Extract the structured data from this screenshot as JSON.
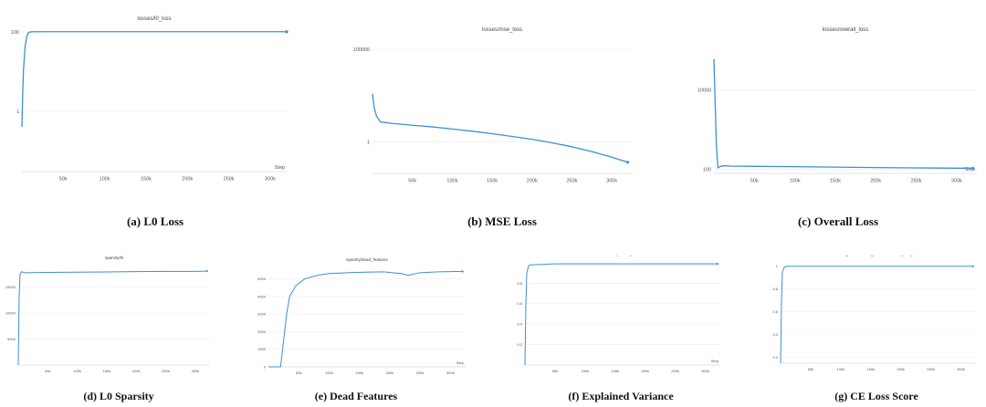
{
  "colors": {
    "line": "#3d8fd6",
    "band": "#bcd8f2",
    "grid": "#ececec",
    "axis": "#cccccc",
    "tick": "#555555",
    "title": "#444444"
  },
  "chart_data": [
    {
      "id": "l0_loss",
      "type": "line",
      "title": "losses/l0_loss",
      "xlabel": "Step",
      "caption": "(a) L0 Loss",
      "log_y": true,
      "x_ticks": [
        50000,
        100000,
        150000,
        200000,
        250000,
        300000
      ],
      "x_tick_labels": [
        "50k",
        "100k",
        "150k",
        "200k",
        "250k",
        "300k"
      ],
      "y_ticks": [
        1,
        100
      ],
      "y_tick_labels": [
        "1",
        "100"
      ],
      "xlim": [
        0,
        320000
      ],
      "ylim": [
        0.03,
        130
      ],
      "series": [
        {
          "x": [
            0,
            1000,
            2000,
            4000,
            6000,
            8000,
            10000,
            15000,
            50000,
            100000,
            150000,
            200000,
            250000,
            300000,
            320000
          ],
          "y": [
            0.4,
            3,
            12,
            45,
            80,
            96,
            100,
            101,
            101,
            101,
            101,
            101,
            101,
            101,
            101
          ]
        }
      ]
    },
    {
      "id": "mse_loss",
      "type": "line",
      "title": "losses/mse_loss",
      "xlabel": "",
      "caption": "(b) MSE Loss",
      "log_y": true,
      "x_ticks": [
        50000,
        100000,
        150000,
        200000,
        250000,
        300000
      ],
      "x_tick_labels": [
        "50k",
        "100k",
        "150k",
        "200k",
        "250k",
        "300k"
      ],
      "y_ticks": [
        1,
        100000
      ],
      "y_tick_labels": [
        "1",
        "100000"
      ],
      "xlim": [
        0,
        325000
      ],
      "ylim": [
        0.02,
        400000
      ],
      "series": [
        {
          "x": [
            0,
            2000,
            5000,
            10000,
            25000,
            50000,
            75000,
            100000,
            125000,
            150000,
            175000,
            200000,
            225000,
            250000,
            275000,
            300000,
            320000
          ],
          "y": [
            400,
            80,
            25,
            12,
            10,
            8,
            6.5,
            5,
            3.8,
            2.8,
            2,
            1.4,
            0.9,
            0.55,
            0.3,
            0.15,
            0.08
          ]
        }
      ]
    },
    {
      "id": "overall_loss",
      "type": "line",
      "title": "losses/overall_loss",
      "xlabel": "Step",
      "caption": "(c) Overall Loss",
      "log_y": true,
      "x_ticks": [
        50000,
        100000,
        150000,
        200000,
        250000,
        300000
      ],
      "x_tick_labels": [
        "50k",
        "100k",
        "150k",
        "200k",
        "250k",
        "300k"
      ],
      "y_ticks": [
        100,
        10000
      ],
      "y_tick_labels": [
        "100",
        "10000"
      ],
      "xlim": [
        0,
        325000
      ],
      "ylim": [
        80,
        200000
      ],
      "series": [
        {
          "x": [
            0,
            1500,
            3000,
            5000,
            8000,
            12000,
            20000,
            50000,
            100000,
            150000,
            200000,
            250000,
            300000,
            320000
          ],
          "y": [
            60000,
            5000,
            400,
            110,
            120,
            125,
            122,
            120,
            118,
            115,
            112,
            110,
            108,
            108
          ]
        }
      ]
    },
    {
      "id": "sparsity_l0",
      "type": "line",
      "title": "sparsity/l0",
      "xlabel": "",
      "caption": "(d) L0 Sparsity",
      "log_y": false,
      "x_ticks": [
        50000,
        100000,
        150000,
        200000,
        250000,
        300000
      ],
      "x_tick_labels": [
        "50k",
        "100k",
        "150k",
        "200k",
        "250k",
        "300k"
      ],
      "y_ticks": [
        5000,
        10000,
        15000
      ],
      "y_tick_labels": [
        "5000",
        "10000",
        "15000"
      ],
      "xlim": [
        0,
        325000
      ],
      "ylim": [
        0,
        19000
      ],
      "series": [
        {
          "x": [
            0,
            1500,
            3000,
            6000,
            10000,
            50000,
            100000,
            150000,
            200000,
            250000,
            300000,
            320000
          ],
          "y": [
            0,
            13000,
            17500,
            18000,
            17800,
            17850,
            17900,
            17950,
            18000,
            18050,
            18050,
            18100
          ]
        }
      ]
    },
    {
      "id": "dead_features",
      "type": "line",
      "title": "sparsity/dead_features",
      "xlabel": "Step",
      "caption": "(e) Dead Features",
      "log_y": false,
      "x_ticks": [
        50000,
        100000,
        150000,
        200000,
        250000,
        300000
      ],
      "x_tick_labels": [
        "50k",
        "100k",
        "150k",
        "200k",
        "250k",
        "300k"
      ],
      "y_ticks": [
        0,
        1000,
        2000,
        3000,
        4000,
        5000
      ],
      "y_tick_labels": [
        "0",
        "1000",
        "2000",
        "3000",
        "4000",
        "5000"
      ],
      "xlim": [
        0,
        325000
      ],
      "ylim": [
        0,
        5600
      ],
      "series": [
        {
          "x": [
            0,
            20000,
            25000,
            30000,
            35000,
            45000,
            60000,
            80000,
            100000,
            130000,
            160000,
            190000,
            205000,
            220000,
            230000,
            250000,
            280000,
            310000,
            320000
          ],
          "y": [
            0,
            0,
            1500,
            3000,
            4000,
            4600,
            5000,
            5200,
            5300,
            5350,
            5380,
            5400,
            5350,
            5300,
            5200,
            5350,
            5400,
            5420,
            5420
          ]
        }
      ]
    },
    {
      "id": "explained_variance",
      "type": "line",
      "title": "metrics/explained_variance",
      "xlabel": "Step",
      "caption": "(f) Explained Variance",
      "log_y": false,
      "x_ticks": [
        50000,
        100000,
        150000,
        200000,
        250000,
        300000
      ],
      "x_tick_labels": [
        "50k",
        "100k",
        "150k",
        "200k",
        "250k",
        "300k"
      ],
      "y_ticks": [
        0.2,
        0.4,
        0.6,
        0.8
      ],
      "y_tick_labels": [
        "0.2",
        "0.4",
        "0.6",
        "0.8"
      ],
      "xlim": [
        0,
        325000
      ],
      "ylim": [
        0,
        1.0
      ],
      "series": [
        {
          "x": [
            0,
            1500,
            3000,
            6000,
            10000,
            50000,
            100000,
            150000,
            200000,
            250000,
            300000,
            320000
          ],
          "y": [
            0,
            0.6,
            0.9,
            0.97,
            0.98,
            0.99,
            0.99,
            0.99,
            0.99,
            0.99,
            0.99,
            0.99
          ]
        }
      ]
    },
    {
      "id": "ce_loss_score",
      "type": "line",
      "title": "model_performance_preservation/ce_loss_score",
      "xlabel": "",
      "caption": "(g) CE Loss Score",
      "log_y": false,
      "x_ticks": [
        50000,
        100000,
        150000,
        200000,
        250000,
        300000
      ],
      "x_tick_labels": [
        "50k",
        "100k",
        "150k",
        "200k",
        "250k",
        "300k"
      ],
      "y_ticks": [
        0.2,
        0.4,
        0.6,
        0.8,
        1
      ],
      "y_tick_labels": [
        "0.2",
        "0.4",
        "0.6",
        "0.8",
        "1"
      ],
      "xlim": [
        0,
        325000
      ],
      "ylim": [
        0.15,
        1.03
      ],
      "series": [
        {
          "x": [
            0,
            1500,
            3000,
            6000,
            10000,
            50000,
            100000,
            150000,
            200000,
            250000,
            300000,
            320000
          ],
          "y": [
            0.15,
            0.7,
            0.95,
            0.99,
            1.0,
            1.0,
            1.0,
            1.0,
            1.0,
            1.0,
            1.0,
            1.0
          ]
        }
      ]
    }
  ]
}
